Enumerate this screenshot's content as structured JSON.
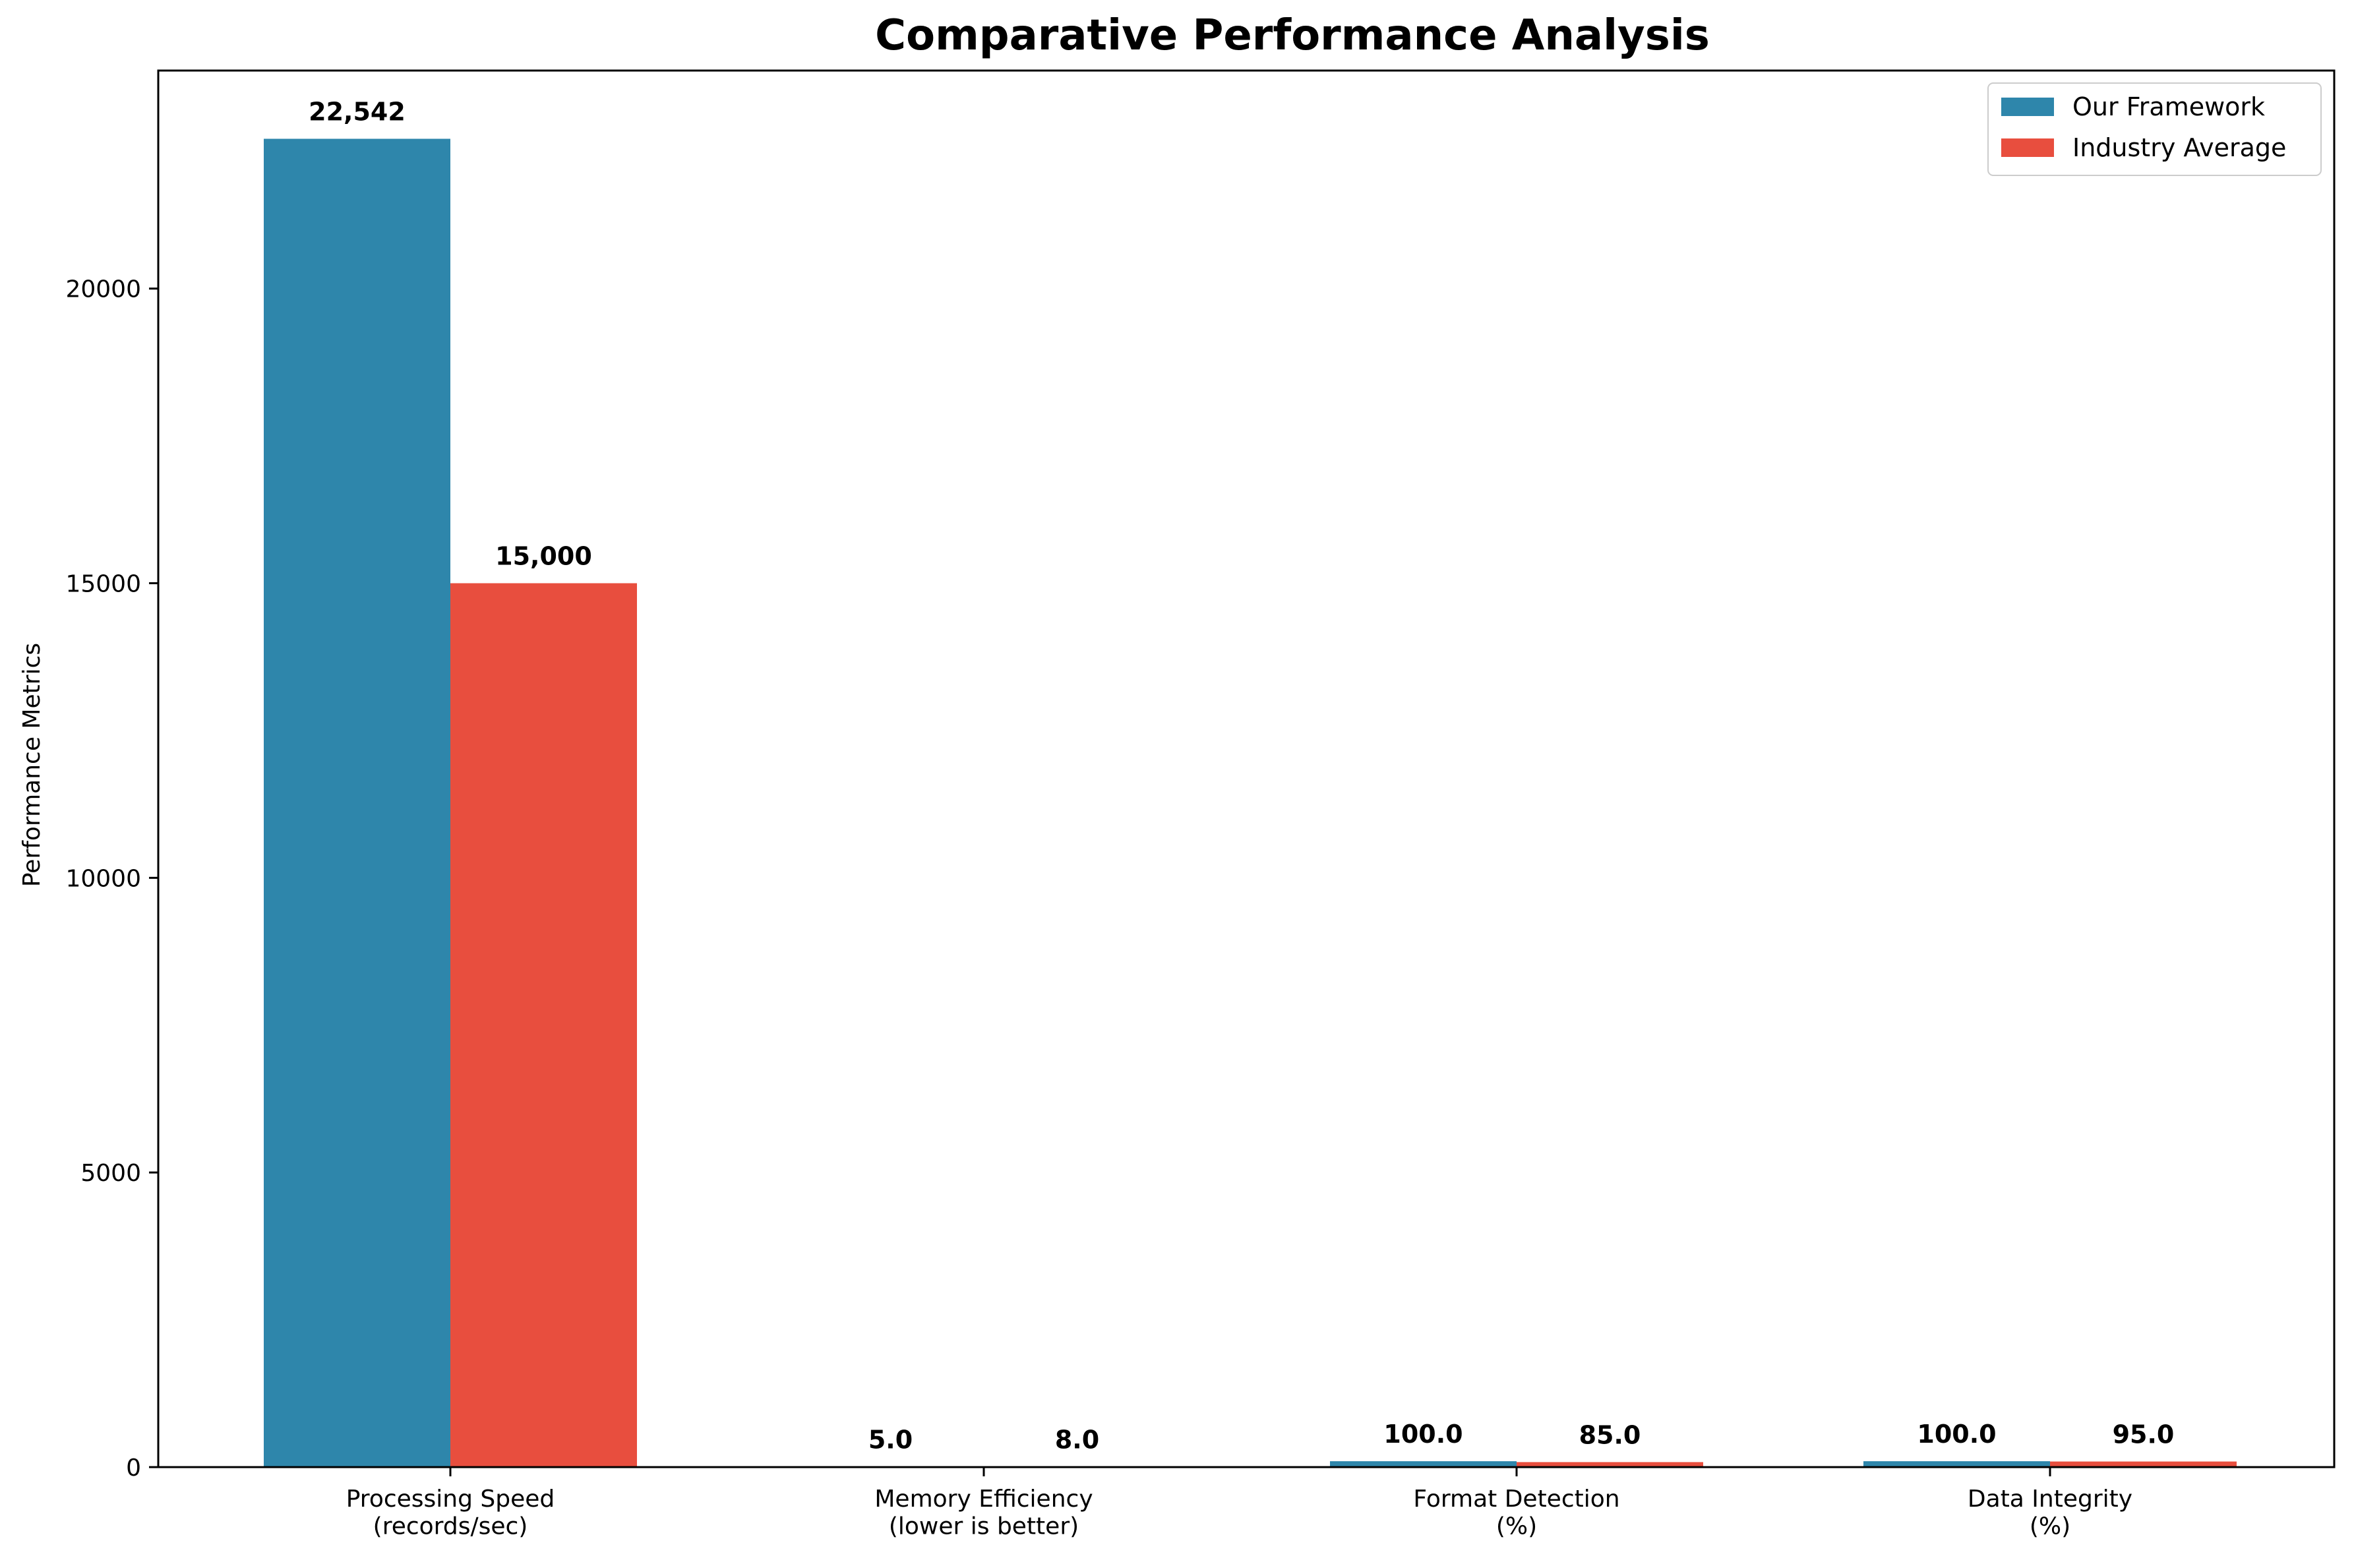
{
  "chart_data": {
    "type": "bar",
    "title": "Comparative Performance Analysis",
    "xlabel": "",
    "ylabel": "Performance Metrics",
    "categories": [
      [
        "Processing Speed",
        "(records/sec)"
      ],
      [
        "Memory Efficiency",
        "(lower is better)"
      ],
      [
        "Format Detection",
        "(%)"
      ],
      [
        "Data Integrity",
        "(%)"
      ]
    ],
    "series": [
      {
        "name": "Our Framework",
        "color": "#2e86ab",
        "values": [
          22542,
          5.0,
          100.0,
          100.0
        ],
        "labels": [
          "22,542",
          "5.0",
          "100.0",
          "100.0"
        ]
      },
      {
        "name": "Industry Average",
        "color": "#e84e3e",
        "values": [
          15000,
          8.0,
          85.0,
          95.0
        ],
        "labels": [
          "15,000",
          "8.0",
          "85.0",
          "95.0"
        ]
      }
    ],
    "ylim": [
      0,
      23700
    ],
    "yticks": [
      0,
      5000,
      10000,
      15000,
      20000
    ],
    "grid": false,
    "legend_position": "top-right"
  }
}
